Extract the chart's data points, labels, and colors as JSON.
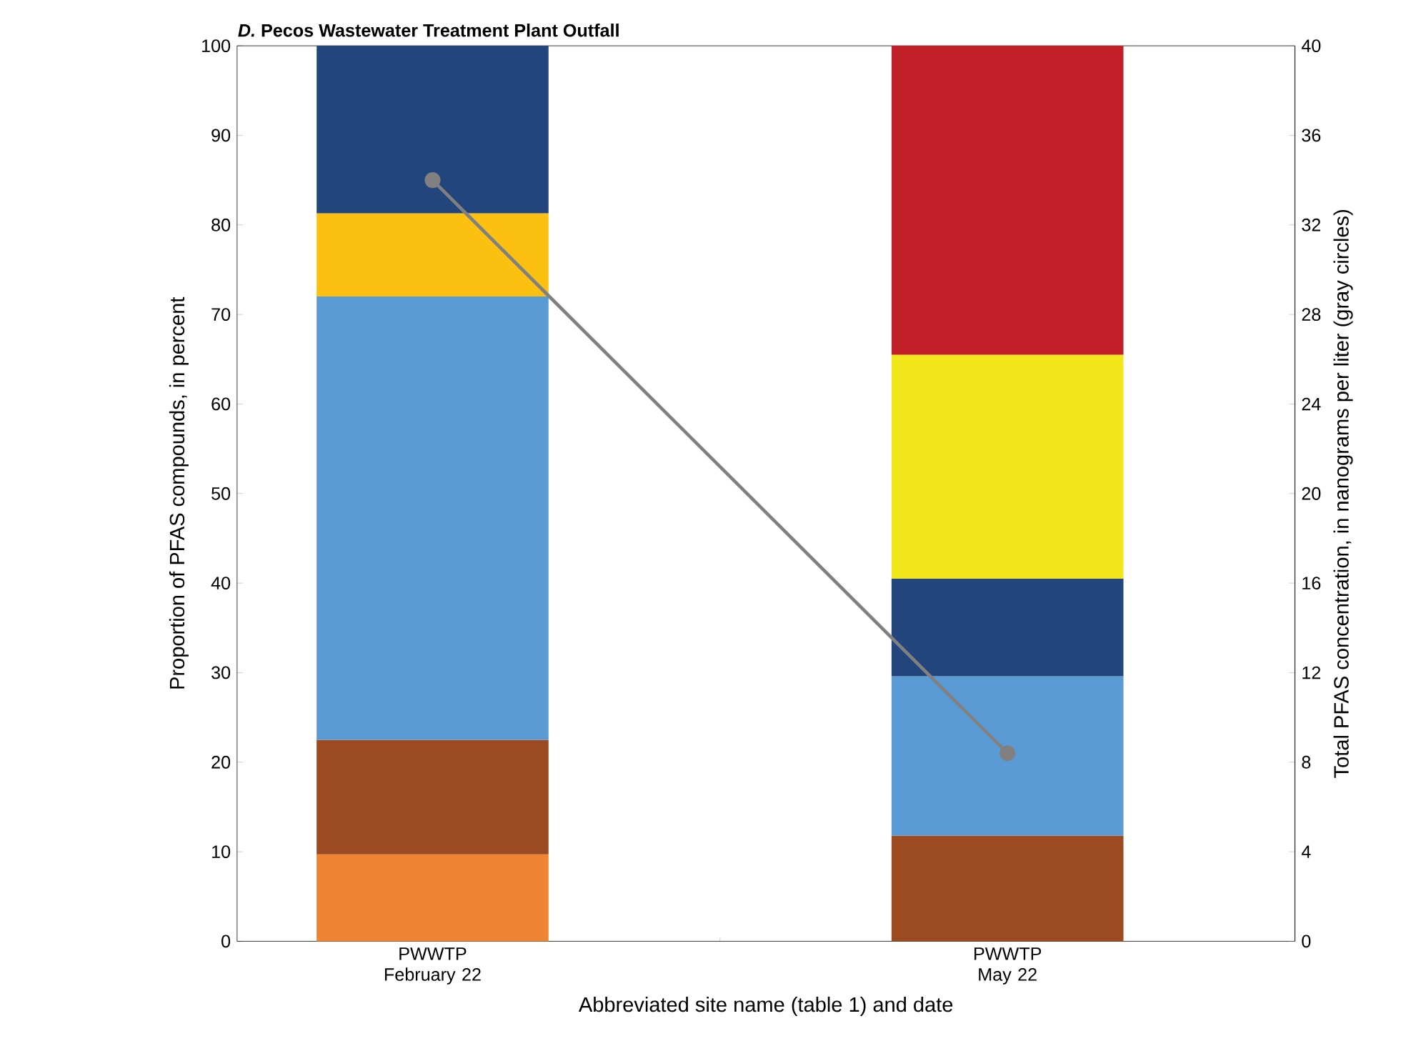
{
  "chart_data": {
    "type": "bar",
    "stacked": true,
    "title": "*D.* Pecos Wastewater Treatment Plant Outfall",
    "xlabel": "Abbreviated site name (table 1) and date",
    "ylabel": "Proportion of PFAS compounds, in percent",
    "y2label": "Total PFAS concentration, in nanograms per liter (gray circles)",
    "categories": [
      "PWWTP February 22",
      "PWWTP May 22"
    ],
    "ylim": [
      0,
      100
    ],
    "yticks": [
      0,
      10,
      20,
      30,
      40,
      50,
      60,
      70,
      80,
      90,
      100
    ],
    "y2lim": [
      0,
      40
    ],
    "y2ticks": [
      0,
      4,
      8,
      12,
      16,
      20,
      24,
      28,
      32,
      36,
      40
    ],
    "series": [
      {
        "color": "#ef8532",
        "values": [
          9.7,
          null
        ]
      },
      {
        "color": "#9c4a22",
        "values": [
          12.8,
          11.8
        ]
      },
      {
        "color": "#5b9bd5",
        "values": [
          49.5,
          17.8
        ]
      },
      {
        "color": "#fbc010",
        "values": [
          9.3,
          null
        ]
      },
      {
        "color": "#22467b",
        "values": [
          18.7,
          10.9
        ]
      },
      {
        "color": "#f2e71a",
        "values": [
          null,
          25.0
        ]
      },
      {
        "color": "#c01f27",
        "values": [
          null,
          34.5
        ]
      },
      {
        "type": "line",
        "axis": "y2",
        "marker": "circle",
        "color": "#808080",
        "values": [
          34,
          8.4
        ]
      }
    ]
  }
}
